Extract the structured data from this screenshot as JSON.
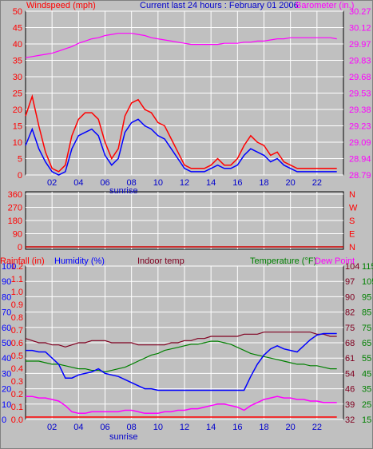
{
  "header": {
    "left_title": "Windspeed (mph)",
    "center_title": "Current last 24 hours : February 01 2006",
    "right_title": "Barometer (in.)"
  },
  "colors": {
    "background": "#c0c0c0",
    "plot_bg": "#c0c0c0",
    "grid": "#ffffff",
    "wind_avg": "#0000ff",
    "wind_gust": "#ff0000",
    "barometer": "#ff00ff",
    "wind_dir": "#cc0000",
    "humidity": "#0000ff",
    "indoor_temp": "#800020",
    "temperature": "#008000",
    "dew_point": "#ff00ff",
    "rainfall": "#ff0000",
    "left_axis_text": "#ff0000",
    "right_axis_text_baro": "#ff00ff",
    "humidity_axis_text": "#0000ff",
    "indoor_axis_text": "#800020",
    "temp_axis_text": "#008000",
    "title_blue": "#0000cc"
  },
  "chart_data": [
    {
      "type": "line",
      "title": "Current last 24 hours : February 01 2006",
      "ylabel": "Windspeed (mph)",
      "y2label": "Barometer (in.)",
      "ylim": [
        0,
        50
      ],
      "y2lim": [
        28.79,
        30.27
      ],
      "y_ticks": [
        "0",
        "5",
        "10",
        "15",
        "20",
        "25",
        "30",
        "35",
        "40",
        "45",
        "50"
      ],
      "y2_ticks": [
        "28.79",
        "28.94",
        "29.09",
        "29.23",
        "29.38",
        "29.53",
        "29.68",
        "29.83",
        "29.97",
        "30.12",
        "30.27"
      ],
      "x_ticks": [
        "02",
        "04",
        "06",
        "08",
        "10",
        "12",
        "14",
        "16",
        "18",
        "20",
        "22"
      ],
      "x_annotation": "sunrise",
      "grid": true,
      "x": [
        0,
        0.5,
        1,
        1.5,
        2,
        2.5,
        3,
        3.5,
        4,
        4.5,
        5,
        5.5,
        6,
        6.5,
        7,
        7.5,
        8,
        8.5,
        9,
        9.5,
        10,
        10.5,
        11,
        11.5,
        12,
        12.5,
        13,
        13.5,
        14,
        14.5,
        15,
        15.5,
        16,
        16.5,
        17,
        17.5,
        18,
        18.5,
        19,
        19.5,
        20,
        20.5,
        21,
        21.5,
        22,
        22.5,
        23,
        23.5
      ],
      "series": [
        {
          "name": "Windspeed",
          "values": [
            9,
            14,
            8,
            4,
            1,
            0,
            1,
            8,
            12,
            13,
            14,
            12,
            6,
            3,
            5,
            13,
            16,
            17,
            15,
            14,
            12,
            11,
            8,
            5,
            2,
            1,
            1,
            1,
            2,
            3,
            2,
            2,
            3,
            6,
            8,
            7,
            6,
            4,
            5,
            3,
            2,
            1,
            1,
            1,
            1,
            1,
            1,
            1
          ]
        },
        {
          "name": "Gust",
          "values": [
            18,
            24,
            15,
            7,
            2,
            1,
            3,
            12,
            17,
            19,
            19,
            17,
            10,
            5,
            8,
            18,
            22,
            23,
            20,
            19,
            16,
            15,
            11,
            7,
            3,
            2,
            2,
            2,
            3,
            5,
            3,
            3,
            5,
            9,
            12,
            10,
            9,
            6,
            7,
            4,
            3,
            2,
            2,
            2,
            2,
            2,
            2,
            2
          ]
        },
        {
          "name": "Barometer",
          "values": [
            29.85,
            29.86,
            29.87,
            29.88,
            29.89,
            29.91,
            29.93,
            29.95,
            29.98,
            30.0,
            30.02,
            30.03,
            30.05,
            30.06,
            30.07,
            30.07,
            30.07,
            30.06,
            30.05,
            30.03,
            30.02,
            30.01,
            30.0,
            29.99,
            29.98,
            29.97,
            29.97,
            29.97,
            29.97,
            29.97,
            29.98,
            29.98,
            29.98,
            29.99,
            29.99,
            30.0,
            30.0,
            30.01,
            30.02,
            30.02,
            30.03,
            30.03,
            30.03,
            30.03,
            30.03,
            30.03,
            30.03,
            30.02
          ]
        }
      ]
    },
    {
      "type": "scatter",
      "ylabel": "Wind direction",
      "ylim": [
        0,
        360
      ],
      "y_ticks": [
        "0",
        "90",
        "180",
        "270",
        "360"
      ],
      "y2_ticks": [
        "N",
        "E",
        "S",
        "W",
        "N"
      ],
      "x": [],
      "series": [
        {
          "name": "Direction",
          "values": []
        }
      ]
    },
    {
      "type": "line",
      "x_ticks": [
        "02",
        "04",
        "06",
        "08",
        "10",
        "12",
        "14",
        "16",
        "18",
        "20",
        "22"
      ],
      "x_annotation": "sunrise",
      "labels": {
        "rainfall": "Rainfall (in)",
        "humidity": "Humidity (%)",
        "indoor": "Indoor temp",
        "temperature": "Temperature (°F)",
        "dewpoint": "Dew Point"
      },
      "rain_ticks": [
        "0.0",
        "0.1",
        "0.2",
        "0.3",
        "0.4",
        "0.5",
        "0.6",
        "0.7",
        "0.8",
        "0.9",
        "1.0",
        "1.1",
        "1.2"
      ],
      "humidity_ticks": [
        "0",
        "10",
        "20",
        "30",
        "40",
        "50",
        "60",
        "70",
        "80",
        "90",
        "100"
      ],
      "indoor_ticks": [
        "32",
        "39",
        "46",
        "54",
        "61",
        "68",
        "75",
        "82",
        "90",
        "97",
        "104"
      ],
      "temp_ticks": [
        "15",
        "25",
        "35",
        "45",
        "55",
        "65",
        "75",
        "85",
        "95",
        "105",
        "115"
      ],
      "ylim": [
        15,
        115
      ],
      "rainfall_lim": [
        0,
        1.2
      ],
      "humidity_lim": [
        0,
        100
      ],
      "indoor_lim": [
        32,
        104
      ],
      "x": [
        0,
        0.5,
        1,
        1.5,
        2,
        2.5,
        3,
        3.5,
        4,
        4.5,
        5,
        5.5,
        6,
        6.5,
        7,
        7.5,
        8,
        8.5,
        9,
        9.5,
        10,
        10.5,
        11,
        11.5,
        12,
        12.5,
        13,
        13.5,
        14,
        14.5,
        15,
        15.5,
        16,
        16.5,
        17,
        17.5,
        18,
        18.5,
        19,
        19.5,
        20,
        20.5,
        21,
        21.5,
        22,
        22.5,
        23,
        23.5
      ],
      "series": [
        {
          "name": "Humidity",
          "values": [
            45,
            45,
            44,
            44,
            40,
            36,
            27,
            27,
            29,
            30,
            31,
            33,
            30,
            29,
            28,
            26,
            24,
            22,
            20,
            20,
            19,
            19,
            19,
            19,
            19,
            19,
            19,
            19,
            19,
            19,
            19,
            19,
            19,
            19,
            28,
            36,
            42,
            46,
            48,
            46,
            45,
            44,
            48,
            52,
            55,
            56,
            56,
            56
          ]
        },
        {
          "name": "Indoor temp",
          "values": [
            70,
            69,
            68,
            68,
            67,
            67,
            66,
            67,
            68,
            68,
            69,
            69,
            69,
            68,
            68,
            68,
            68,
            67,
            67,
            67,
            67,
            67,
            68,
            68,
            69,
            69,
            70,
            70,
            71,
            71,
            71,
            71,
            71,
            72,
            72,
            72,
            73,
            73,
            73,
            73,
            73,
            73,
            73,
            73,
            72,
            72,
            71,
            71
          ]
        },
        {
          "name": "Temperature",
          "values": [
            53,
            53,
            53,
            52,
            51,
            51,
            50,
            49,
            48,
            48,
            47,
            47,
            46,
            47,
            48,
            49,
            51,
            53,
            55,
            57,
            58,
            60,
            61,
            62,
            63,
            64,
            64,
            65,
            66,
            66,
            65,
            64,
            62,
            60,
            58,
            57,
            56,
            55,
            54,
            53,
            52,
            51,
            51,
            50,
            50,
            49,
            48,
            48
          ]
        },
        {
          "name": "Dew Point",
          "values": [
            30,
            30,
            29,
            29,
            28,
            27,
            24,
            20,
            19,
            19,
            20,
            20,
            20,
            20,
            20,
            21,
            21,
            20,
            19,
            19,
            19,
            20,
            20,
            21,
            21,
            22,
            22,
            23,
            24,
            25,
            25,
            24,
            23,
            21,
            24,
            26,
            28,
            29,
            30,
            29,
            29,
            28,
            28,
            27,
            27,
            26,
            26,
            26
          ]
        },
        {
          "name": "Rainfall",
          "values": [
            0,
            0,
            0,
            0,
            0,
            0,
            0,
            0,
            0,
            0,
            0,
            0,
            0,
            0,
            0,
            0,
            0,
            0,
            0,
            0,
            0,
            0,
            0,
            0,
            0,
            0,
            0,
            0,
            0,
            0,
            0,
            0,
            0,
            0,
            0,
            0,
            0,
            0,
            0,
            0,
            0,
            0,
            0,
            0,
            0,
            0,
            0,
            0
          ]
        }
      ]
    }
  ]
}
